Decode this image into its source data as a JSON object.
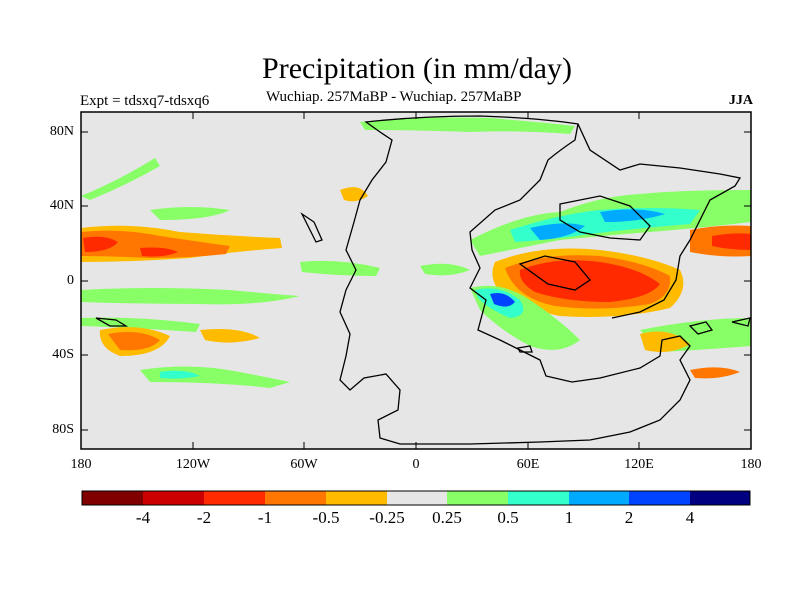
{
  "figure": {
    "title": "Precipitation (in mm/day)",
    "subtitle": "Wuchiap. 257MaBP - Wuchiap. 257MaBP",
    "left_label": "Expt = tdsxq7-tdsxq6",
    "season": "JJA"
  },
  "axes": {
    "lat_labels": [
      "80N",
      "40N",
      "0",
      "40S",
      "80S"
    ],
    "lon_labels": [
      "180",
      "120W",
      "60W",
      "0",
      "60E",
      "120E",
      "180"
    ]
  },
  "colorbar": {
    "colors": [
      "#800000",
      "#cc0000",
      "#ff2a00",
      "#ff7700",
      "#ffbb00",
      "#e6e6e6",
      "#88ff66",
      "#33ffcc",
      "#00aaff",
      "#0044ff",
      "#000080"
    ],
    "labels": [
      "-4",
      "-2",
      "-1",
      "-0.5",
      "-0.25",
      "0.25",
      "0.5",
      "1",
      "2",
      "4"
    ]
  },
  "colors": {
    "background": "#e6e6e6",
    "coastline": "#000000"
  }
}
